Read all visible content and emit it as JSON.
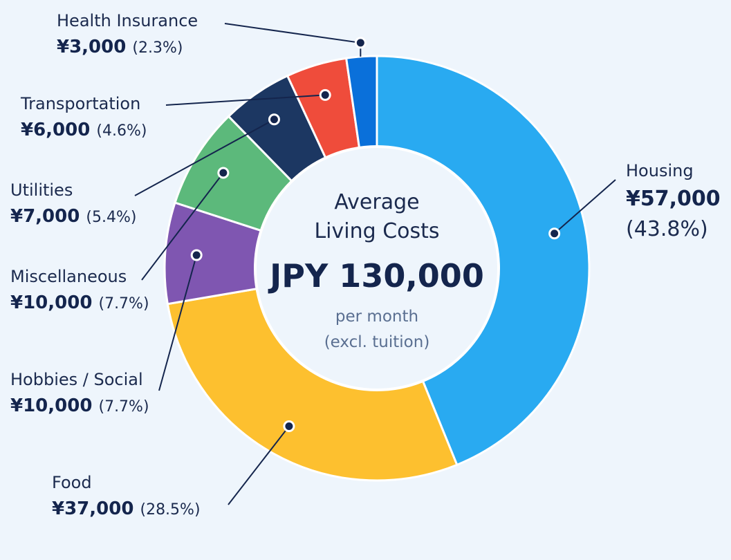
{
  "chart_data": {
    "type": "pie",
    "variant": "donut",
    "center": {
      "title_line1": "Average",
      "title_line2": "Living Costs",
      "total": "JPY 130,000",
      "sub_line1": "per month",
      "sub_line2": "(excl. tuition)"
    },
    "slices": [
      {
        "name": "Housing",
        "value": 57000,
        "amount_label": "¥57,000",
        "percent_label": "(43.8%)",
        "color": "#29aaf1"
      },
      {
        "name": "Food",
        "value": 37000,
        "amount_label": "¥37,000",
        "percent_label": "(28.5%)",
        "color": "#fdc02f"
      },
      {
        "name": "Hobbies / Social",
        "value": 10000,
        "amount_label": "¥10,000",
        "percent_label": "(7.7%)",
        "color": "#7f56b1"
      },
      {
        "name": "Miscellaneous",
        "value": 10000,
        "amount_label": "¥10,000",
        "percent_label": "(7.7%)",
        "color": "#5cb97b"
      },
      {
        "name": "Utilities",
        "value": 7000,
        "amount_label": "¥7,000",
        "percent_label": "(5.4%)",
        "color": "#1c3762"
      },
      {
        "name": "Transportation",
        "value": 6000,
        "amount_label": "¥6,000",
        "percent_label": "(4.6%)",
        "color": "#ef4c3b"
      },
      {
        "name": "Health Insurance",
        "value": 3000,
        "amount_label": "¥3,000",
        "percent_label": "(2.3%)",
        "color": "#0a70da"
      }
    ]
  }
}
